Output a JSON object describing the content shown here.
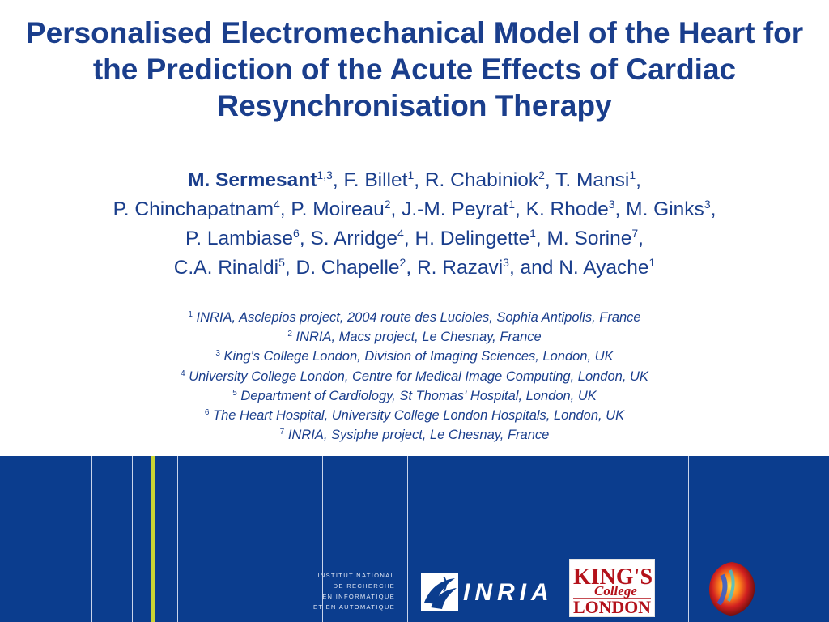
{
  "title": "Personalised Electromechanical Model of the Heart for the Prediction of the Acute Effects of Cardiac Resynchronisation Therapy",
  "authors_lines": [
    [
      {
        "name": "M. Sermesant",
        "sup": "1,3",
        "bold": true
      },
      {
        "text": ", F. Billet"
      },
      {
        "sup": "1"
      },
      {
        "text": ", R. Chabiniok"
      },
      {
        "sup": "2"
      },
      {
        "text": ", T. Mansi"
      },
      {
        "sup": "1"
      },
      {
        "text": ","
      }
    ],
    [
      {
        "text": "P. Chinchapatnam"
      },
      {
        "sup": "4"
      },
      {
        "text": ", P. Moireau"
      },
      {
        "sup": "2"
      },
      {
        "text": ", J.-M. Peyrat"
      },
      {
        "sup": "1"
      },
      {
        "text": ", K. Rhode"
      },
      {
        "sup": "3"
      },
      {
        "text": ", M. Ginks"
      },
      {
        "sup": "3"
      },
      {
        "text": ","
      }
    ],
    [
      {
        "text": "P. Lambiase"
      },
      {
        "sup": "6"
      },
      {
        "text": ", S. Arridge"
      },
      {
        "sup": "4"
      },
      {
        "text": ", H. Delingette"
      },
      {
        "sup": "1"
      },
      {
        "text": ", M. Sorine"
      },
      {
        "sup": "7"
      },
      {
        "text": ","
      }
    ],
    [
      {
        "text": "C.A. Rinaldi"
      },
      {
        "sup": "5"
      },
      {
        "text": ", D. Chapelle"
      },
      {
        "sup": "2"
      },
      {
        "text": ", R. Razavi"
      },
      {
        "sup": "3"
      },
      {
        "text": ", and N. Ayache"
      },
      {
        "sup": "1"
      }
    ]
  ],
  "affiliations": [
    {
      "num": "1",
      "text": "INRIA, Asclepios project, 2004 route des Lucioles, Sophia Antipolis, France"
    },
    {
      "num": "2",
      "text": "INRIA, Macs project, Le Chesnay, France"
    },
    {
      "num": "3",
      "text": "King's College London, Division of Imaging Sciences, London, UK"
    },
    {
      "num": "4",
      "text": "University College London, Centre for Medical Image Computing, London, UK"
    },
    {
      "num": "5",
      "text": "Department of Cardiology, St Thomas' Hospital, London, UK"
    },
    {
      "num": "6",
      "text": "The Heart Hospital, University College London Hospitals, London, UK"
    },
    {
      "num": "7",
      "text": "INRIA, Sysiphe project, Le Chesnay, France"
    }
  ],
  "footer": {
    "inria_lines": [
      "INSTITUT NATIONAL",
      "DE RECHERCHE",
      "EN INFORMATIQUE",
      "ET EN AUTOMATIQUE"
    ],
    "inria_word": "INRIA",
    "kings_logo": {
      "line1": "KING'S",
      "line2": "College",
      "line3": "LONDON"
    }
  },
  "colors": {
    "title": "#1a3e8c",
    "band": "#0b3d8e",
    "accent_line": "#c9d534",
    "kings_red": "#b3121b"
  },
  "icons": {
    "inria_logo": "inria-swirl-icon",
    "heart_logo": "heart-model-icon"
  }
}
